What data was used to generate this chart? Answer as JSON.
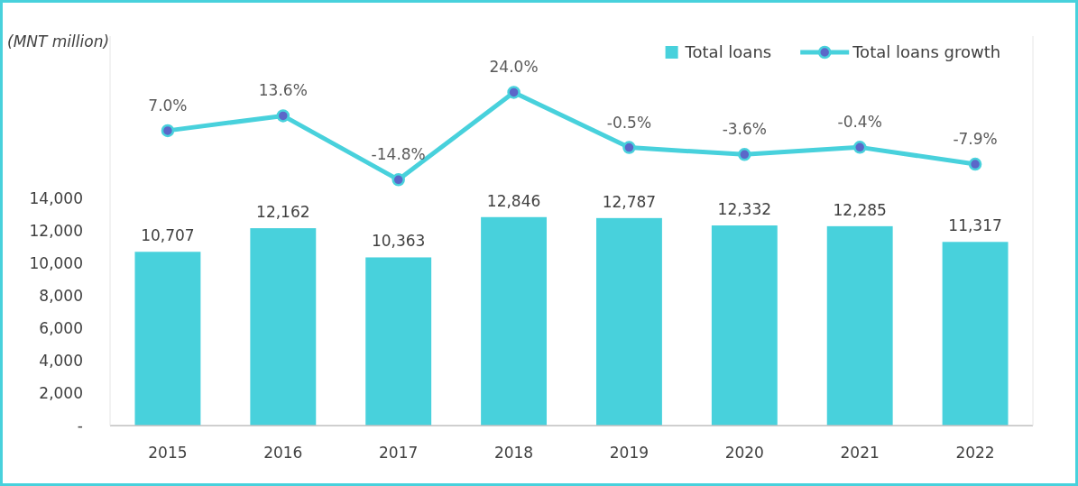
{
  "chart_data": {
    "type": "bar",
    "annotations": [
      "(MNT million)"
    ],
    "categories": [
      "2015",
      "2016",
      "2017",
      "2018",
      "2019",
      "2020",
      "2021",
      "2022"
    ],
    "series": [
      {
        "name": "Total loans",
        "color": "#48d1dc",
        "values": [
          10707,
          12162,
          10363,
          12846,
          12787,
          12332,
          12285,
          11317
        ],
        "value_labels": [
          "10,707",
          "12,162",
          "10,363",
          "12,846",
          "12,787",
          "12,332",
          "12,285",
          "11,317"
        ]
      },
      {
        "name": "Total loans growth",
        "type": "line",
        "axis": "y2",
        "color": "#48d1dc",
        "marker": "circle",
        "values": [
          7.0,
          13.6,
          -14.8,
          24.0,
          -0.5,
          -3.6,
          -0.4,
          -7.9
        ],
        "value_labels": [
          "7.0%",
          "13.6%",
          "-14.8%",
          "24.0%",
          "-0.5%",
          "-3.6%",
          "-0.4%",
          "-7.9%"
        ]
      }
    ],
    "ylim": [
      0,
      24000
    ],
    "yticks": [
      {
        "value": 0,
        "label": "-"
      },
      {
        "value": 2000,
        "label": "2,000"
      },
      {
        "value": 4000,
        "label": "4,000"
      },
      {
        "value": 6000,
        "label": "6,000"
      },
      {
        "value": 8000,
        "label": "8,000"
      },
      {
        "value": 10000,
        "label": "10,000"
      },
      {
        "value": 12000,
        "label": "12,000"
      },
      {
        "value": 14000,
        "label": "14,000"
      }
    ],
    "y2lim": [
      -124,
      49
    ],
    "legend": "top right",
    "grid": false
  }
}
